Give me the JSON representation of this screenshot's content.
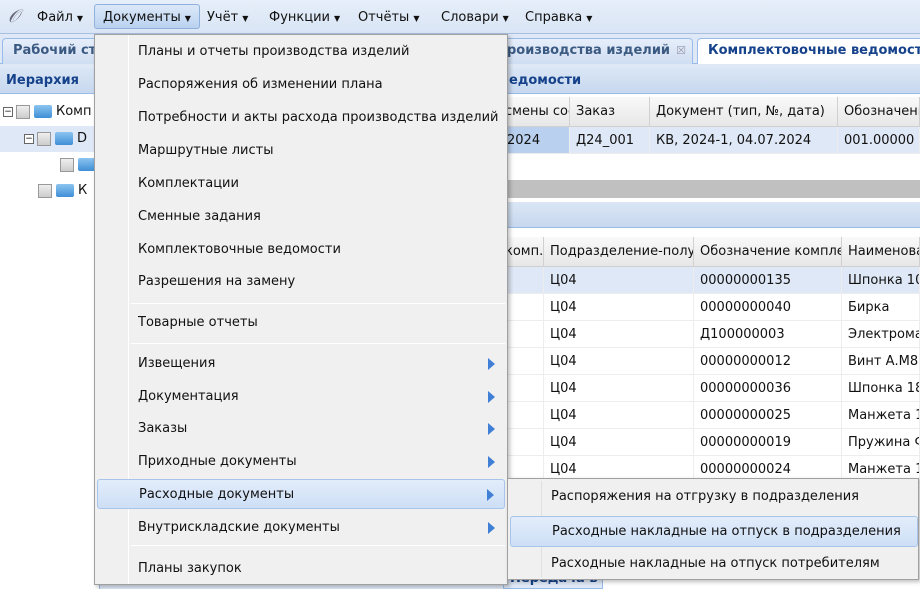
{
  "menubar": {
    "items": [
      {
        "label": "Файл"
      },
      {
        "label": "Документы"
      },
      {
        "label": "Учёт"
      },
      {
        "label": "Функции"
      },
      {
        "label": "Отчёты"
      },
      {
        "label": "Словари"
      },
      {
        "label": "Справка"
      }
    ]
  },
  "tabs": [
    {
      "label": "Рабочий ст"
    },
    {
      "label": "роизводства изделий"
    },
    {
      "label": "Комплектовочные ведомости"
    }
  ],
  "left_panel": {
    "title": "Иерархия",
    "tree": [
      {
        "label": "Комп"
      },
      {
        "label": "D"
      },
      {
        "label": ""
      },
      {
        "label": "К"
      }
    ]
  },
  "right_panel": {
    "title": "едомости",
    "upper_grid": {
      "columns": [
        "смены сос",
        "Заказ",
        "Документ (тип, №, дата)",
        "Обозначени"
      ],
      "rows": [
        [
          "2024",
          "Д24_001",
          "КВ, 2024-1, 04.07.2024",
          "001.00000"
        ]
      ]
    },
    "lower_grid": {
      "columns": [
        "комп.",
        "Подразделение-получ",
        "Обозначение компле",
        "Наименова"
      ],
      "rows": [
        [
          "",
          "Ц04",
          "00000000135",
          "Шпонка 10"
        ],
        [
          "",
          "Ц04",
          "00000000040",
          "Бирка"
        ],
        [
          "",
          "Ц04",
          "Д100000003",
          "Электрома"
        ],
        [
          "",
          "Ц04",
          "00000000012",
          "Винт А.М8"
        ],
        [
          "",
          "Ц04",
          "00000000036",
          "Шпонка 18"
        ],
        [
          "",
          "Ц04",
          "00000000025",
          "Манжета 1"
        ],
        [
          "",
          "Ц04",
          "00000000019",
          "Пружина Ф"
        ],
        [
          "",
          "Ц04",
          "00000000024",
          "Манжета 1"
        ]
      ]
    },
    "bottom_tab": "Передача в цех"
  },
  "documents_menu": {
    "items": [
      {
        "label": "Планы и отчеты производства изделий"
      },
      {
        "label": "Распоряжения об изменении плана"
      },
      {
        "label": "Потребности и акты расхода производства изделий"
      },
      {
        "label": "Маршрутные листы"
      },
      {
        "label": "Комплектации"
      },
      {
        "label": "Сменные задания"
      },
      {
        "label": "Комплектовочные ведомости"
      },
      {
        "label": "Разрешения на замену"
      },
      {
        "label": "Товарные отчеты"
      },
      {
        "label": "Извещения",
        "submenu": true
      },
      {
        "label": "Документация",
        "submenu": true
      },
      {
        "label": "Заказы",
        "submenu": true
      },
      {
        "label": "Приходные документы",
        "submenu": true
      },
      {
        "label": "Расходные документы",
        "submenu": true,
        "active": true
      },
      {
        "label": "Внутрискладские документы",
        "submenu": true
      },
      {
        "label": "Планы закупок"
      }
    ]
  },
  "submenu": {
    "items": [
      {
        "label": "Распоряжения на отгрузку в подразделения"
      },
      {
        "label": "Расходные накладные на отпуск в подразделения",
        "hover": true
      },
      {
        "label": "Расходные накладные на отпуск потребителям"
      }
    ]
  },
  "colors": {
    "accent": "#15428b",
    "menu_highlight": "#cddff6",
    "arrow": "#3f7fd6"
  }
}
